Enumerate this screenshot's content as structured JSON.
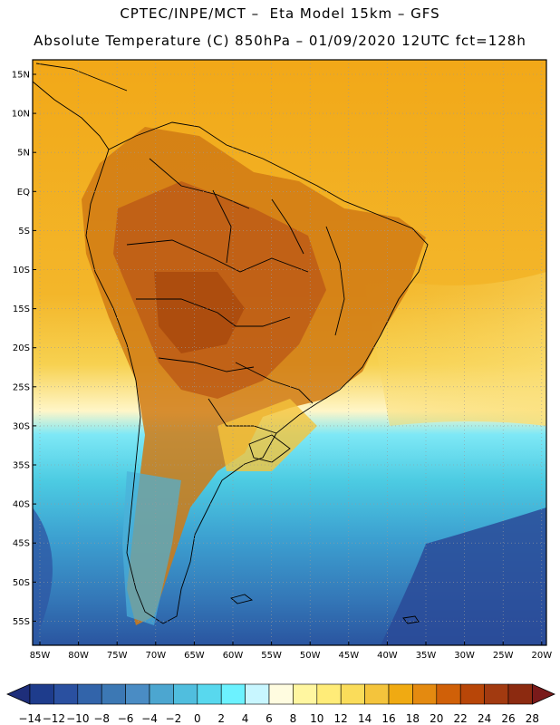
{
  "header": {
    "line1": "CPTEC/INPE/MCT –  Eta Model 15km – GFS",
    "line2": "Absolute Temperature (C) 850hPa – 01/09/2020 12UTC fct=128h"
  },
  "map": {
    "lat_labels": [
      "15N",
      "10N",
      "5N",
      "EQ",
      "5S",
      "10S",
      "15S",
      "20S",
      "25S",
      "30S",
      "35S",
      "40S",
      "45S",
      "50S",
      "55S"
    ],
    "lon_labels": [
      "85W",
      "80W",
      "75W",
      "70W",
      "65W",
      "60W",
      "55W",
      "50W",
      "45W",
      "40W",
      "35W",
      "30W",
      "25W",
      "20W"
    ]
  },
  "colorbar": {
    "labels": [
      "-14",
      "-12",
      "-10",
      "-8",
      "-6",
      "-4",
      "-2",
      "0",
      "2",
      "4",
      "6",
      "8",
      "10",
      "12",
      "14",
      "16",
      "18",
      "20",
      "22",
      "24",
      "26",
      "28"
    ],
    "colors": [
      "#1e3c8c",
      "#2a50a0",
      "#3264aa",
      "#3c78b4",
      "#4a8cc4",
      "#4ca6d0",
      "#50bede",
      "#58d8ee",
      "#6cf2ff",
      "#c8f6ff",
      "#fffce0",
      "#fff6a0",
      "#ffec78",
      "#fadc5a",
      "#f4c43c",
      "#f0aa12",
      "#e48a10",
      "#d06008",
      "#b84608",
      "#a23a10",
      "#8c2a10"
    ]
  }
}
